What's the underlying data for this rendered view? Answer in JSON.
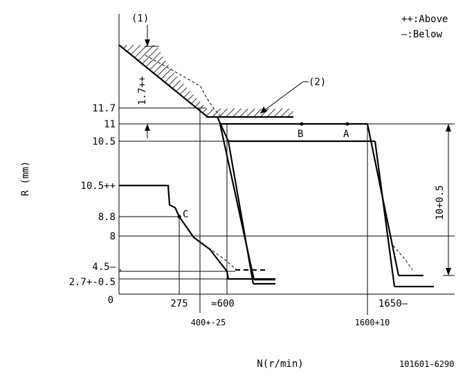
{
  "legend": {
    "above": "++:Above",
    "below": "—:Below"
  },
  "axes": {
    "y_label": "R (mm)",
    "x_label": "N(r/min)",
    "origin": "0"
  },
  "y_ticks": [
    "11.7",
    "11",
    "10.5",
    "10.5++",
    "8.8",
    "8",
    "4.5—",
    "2.7+-0.5"
  ],
  "x_ticks": {
    "t275": "275",
    "t600": "≈600",
    "t400": "400+-25",
    "t1650": "1650—",
    "t1600": "1600+10"
  },
  "annotations": {
    "callout1": "(1)",
    "callout2": "(2)",
    "dim_17": "1.7++",
    "dim_10": "10+0.5",
    "point_a": "A",
    "point_b": "B",
    "point_c": "C"
  },
  "drawing_number": "101601-6290",
  "colors": {
    "ink": "#000000",
    "background": "#ffffff"
  }
}
